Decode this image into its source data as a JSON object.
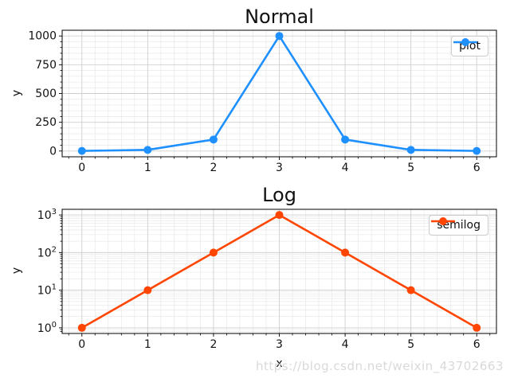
{
  "figure": {
    "background": "#ffffff",
    "watermark_text": "https://blog.csdn.net/weixin_43702663",
    "watermark_color": "#d9d9d9",
    "text_color": "#111111",
    "spine_color": "#000000",
    "grid_major_color": "#cfcfcf",
    "grid_minor_color": "#e8e8e8"
  },
  "chart_data": [
    {
      "type": "line",
      "title": "Normal",
      "xlabel": "",
      "ylabel": "y",
      "yscale": "linear",
      "x": [
        0,
        1,
        2,
        3,
        4,
        5,
        6
      ],
      "series": [
        {
          "name": "plot",
          "values": [
            1,
            10,
            100,
            1000,
            100,
            10,
            1
          ],
          "color": "#1E90FF",
          "marker": "o"
        }
      ],
      "legend": {
        "label": "plot",
        "position": "upper right"
      },
      "xticks": [
        0,
        1,
        2,
        3,
        4,
        5,
        6
      ],
      "yticks": [
        0,
        250,
        500,
        750,
        1000
      ],
      "xlim": [
        -0.3,
        6.3
      ],
      "ylim": [
        -49.95,
        1049.95
      ],
      "x_minor_step": 0.2,
      "y_minor_step": 50,
      "grid": "major+minor"
    },
    {
      "type": "line",
      "title": "Log",
      "xlabel": "x",
      "ylabel": "y",
      "yscale": "log",
      "x": [
        0,
        1,
        2,
        3,
        4,
        5,
        6
      ],
      "series": [
        {
          "name": "semilog",
          "values": [
            1,
            10,
            100,
            1000,
            100,
            10,
            1
          ],
          "color": "#FF4500",
          "marker": "o"
        }
      ],
      "legend": {
        "label": "semilog",
        "position": "upper right"
      },
      "xticks": [
        0,
        1,
        2,
        3,
        4,
        5,
        6
      ],
      "ytick_exponents": [
        0,
        1,
        2,
        3
      ],
      "xlim": [
        -0.3,
        6.3
      ],
      "ylim_log10": [
        -0.15,
        3.15
      ],
      "x_minor_step": 0.2,
      "grid": "major+minor"
    }
  ]
}
